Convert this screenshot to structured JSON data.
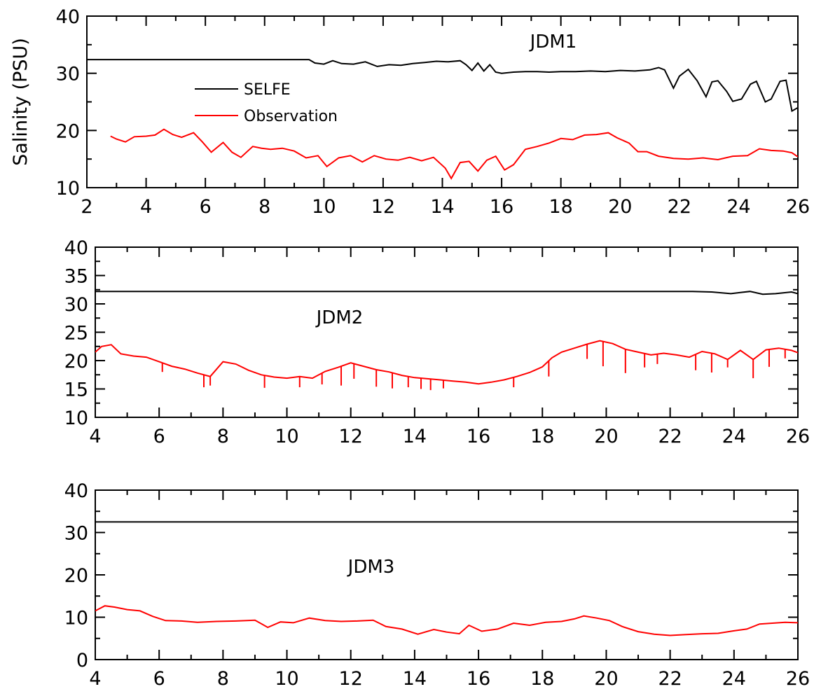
{
  "chart_data": [
    {
      "type": "line",
      "title": "JDM1",
      "ylabel": "Salinity (PSU)",
      "xlim": [
        2,
        26
      ],
      "ylim": [
        10,
        40
      ],
      "xticks": [
        2,
        4,
        6,
        8,
        10,
        12,
        14,
        16,
        18,
        20,
        22,
        24,
        26
      ],
      "yticks": [
        10,
        20,
        30,
        40
      ],
      "legend": {
        "position": "upper-left",
        "entries": [
          "SELFE",
          "Observation"
        ]
      },
      "series": [
        {
          "name": "SELFE",
          "color": "#000000",
          "x": [
            2,
            9.5,
            9.7,
            10,
            10.3,
            10.6,
            11,
            11.4,
            11.8,
            12.2,
            12.6,
            13,
            13.4,
            13.8,
            14.2,
            14.6,
            14.8,
            15,
            15.2,
            15.4,
            15.6,
            15.8,
            16,
            16.4,
            16.8,
            17.2,
            17.6,
            18,
            18.5,
            19,
            19.5,
            20,
            20.5,
            21,
            21.3,
            21.5,
            21.8,
            22,
            22.3,
            22.6,
            22.9,
            23.1,
            23.3,
            23.6,
            23.8,
            24.1,
            24.4,
            24.6,
            24.9,
            25.1,
            25.4,
            25.6,
            25.8,
            26
          ],
          "y": [
            32.4,
            32.4,
            31.8,
            31.6,
            32.2,
            31.7,
            31.6,
            32.0,
            31.2,
            31.5,
            31.4,
            31.7,
            31.9,
            32.1,
            32.0,
            32.2,
            31.5,
            30.5,
            31.8,
            30.4,
            31.5,
            30.2,
            30.0,
            30.2,
            30.3,
            30.3,
            30.2,
            30.3,
            30.3,
            30.4,
            30.3,
            30.5,
            30.4,
            30.6,
            31.0,
            30.6,
            27.4,
            29.5,
            30.7,
            28.7,
            25.9,
            28.5,
            28.7,
            26.8,
            25.1,
            25.5,
            28.1,
            28.6,
            25.0,
            25.5,
            28.6,
            28.8,
            23.4,
            24.0
          ]
        },
        {
          "name": "Observation",
          "color": "#ff0000",
          "x": [
            2.8,
            3.0,
            3.3,
            3.6,
            4.0,
            4.3,
            4.6,
            4.9,
            5.2,
            5.6,
            5.9,
            6.2,
            6.6,
            6.9,
            7.2,
            7.6,
            7.9,
            8.2,
            8.6,
            9.0,
            9.4,
            9.8,
            10.1,
            10.5,
            10.9,
            11.3,
            11.7,
            12.1,
            12.5,
            12.9,
            13.3,
            13.7,
            14.1,
            14.3,
            14.6,
            14.9,
            15.2,
            15.5,
            15.8,
            16.1,
            16.4,
            16.8,
            17.2,
            17.6,
            18.0,
            18.4,
            18.8,
            19.2,
            19.6,
            19.9,
            20.3,
            20.6,
            20.9,
            21.3,
            21.8,
            22.3,
            22.8,
            23.3,
            23.8,
            24.3,
            24.7,
            25.1,
            25.5,
            25.8,
            26.0
          ],
          "y": [
            19.0,
            18.5,
            18.0,
            18.9,
            19.0,
            19.2,
            20.2,
            19.3,
            18.8,
            19.6,
            18.0,
            16.2,
            17.9,
            16.2,
            15.3,
            17.2,
            16.9,
            16.7,
            16.9,
            16.4,
            15.2,
            15.6,
            13.7,
            15.2,
            15.6,
            14.5,
            15.6,
            15.0,
            14.8,
            15.3,
            14.7,
            15.3,
            13.4,
            11.6,
            14.4,
            14.6,
            12.9,
            14.8,
            15.5,
            13.1,
            14.0,
            16.7,
            17.2,
            17.8,
            18.6,
            18.4,
            19.2,
            19.3,
            19.6,
            18.7,
            17.8,
            16.3,
            16.3,
            15.5,
            15.1,
            15.0,
            15.2,
            14.9,
            15.5,
            15.6,
            16.8,
            16.5,
            16.4,
            16.1,
            15.4
          ]
        }
      ]
    },
    {
      "type": "line",
      "title": "JDM2",
      "xlim": [
        4,
        26
      ],
      "ylim": [
        10,
        40
      ],
      "xticks": [
        4,
        6,
        8,
        10,
        12,
        14,
        16,
        18,
        20,
        22,
        24,
        26
      ],
      "yticks": [
        10,
        15,
        20,
        25,
        30,
        35,
        40
      ],
      "series": [
        {
          "name": "SELFE",
          "color": "#000000",
          "x": [
            4,
            22.7,
            23.3,
            23.9,
            24.2,
            24.5,
            24.9,
            25.3,
            25.8,
            26
          ],
          "y": [
            32.2,
            32.2,
            32.1,
            31.8,
            32.0,
            32.2,
            31.7,
            31.8,
            32.1,
            31.8
          ]
        },
        {
          "name": "Observation",
          "color": "#ff0000",
          "x": [
            4,
            4.2,
            4.5,
            4.8,
            5.2,
            5.6,
            6.0,
            6.4,
            6.8,
            7.2,
            7.6,
            8.0,
            8.4,
            8.8,
            9.2,
            9.6,
            10.0,
            10.4,
            10.8,
            11.2,
            11.6,
            12.0,
            12.4,
            12.8,
            13.2,
            13.6,
            14.0,
            14.4,
            14.8,
            15.2,
            15.6,
            16.0,
            16.4,
            16.8,
            17.2,
            17.6,
            18.0,
            18.3,
            18.6,
            19.0,
            19.4,
            19.8,
            20.2,
            20.6,
            21.0,
            21.4,
            21.8,
            22.2,
            22.6,
            23.0,
            23.4,
            23.8,
            24.2,
            24.6,
            25.0,
            25.4,
            25.8,
            26.0
          ],
          "y": [
            21.5,
            22.5,
            22.8,
            21.2,
            20.8,
            20.6,
            19.8,
            19.0,
            18.5,
            17.8,
            17.2,
            19.8,
            19.4,
            18.3,
            17.5,
            17.1,
            16.9,
            17.2,
            16.9,
            18.1,
            18.8,
            19.6,
            19.0,
            18.4,
            18.0,
            17.4,
            17.0,
            16.8,
            16.6,
            16.4,
            16.2,
            15.9,
            16.2,
            16.6,
            17.2,
            17.9,
            18.9,
            20.5,
            21.5,
            22.2,
            22.9,
            23.5,
            23.0,
            22.0,
            21.5,
            21.0,
            21.3,
            21.0,
            20.6,
            21.6,
            21.2,
            20.2,
            21.8,
            20.2,
            21.9,
            22.2,
            21.8,
            21.4
          ],
          "dips": [
            [
              6.1,
              18.0
            ],
            [
              7.4,
              15.3
            ],
            [
              7.6,
              15.6
            ],
            [
              9.3,
              15.2
            ],
            [
              10.4,
              15.3
            ],
            [
              11.1,
              15.8
            ],
            [
              11.7,
              15.6
            ],
            [
              12.1,
              16.8
            ],
            [
              12.8,
              15.4
            ],
            [
              13.3,
              15.1
            ],
            [
              13.8,
              15.3
            ],
            [
              14.2,
              15.0
            ],
            [
              14.5,
              14.8
            ],
            [
              14.9,
              15.1
            ],
            [
              17.1,
              15.3
            ],
            [
              18.2,
              17.2
            ],
            [
              19.4,
              20.3
            ],
            [
              19.9,
              19.0
            ],
            [
              20.6,
              17.8
            ],
            [
              21.2,
              18.8
            ],
            [
              21.6,
              19.4
            ],
            [
              22.8,
              18.3
            ],
            [
              23.3,
              17.9
            ],
            [
              23.8,
              18.8
            ],
            [
              24.6,
              16.9
            ],
            [
              25.1,
              18.9
            ],
            [
              25.6,
              20.4
            ]
          ]
        }
      ]
    },
    {
      "type": "line",
      "title": "JDM3",
      "xlim": [
        4,
        26
      ],
      "ylim": [
        0,
        40
      ],
      "xticks": [
        4,
        6,
        8,
        10,
        12,
        14,
        16,
        18,
        20,
        22,
        24,
        26
      ],
      "yticks": [
        0,
        10,
        20,
        30,
        40
      ],
      "series": [
        {
          "name": "SELFE",
          "color": "#000000",
          "x": [
            4,
            26
          ],
          "y": [
            32.5,
            32.5
          ]
        },
        {
          "name": "Observation",
          "color": "#ff0000",
          "x": [
            4,
            4.3,
            4.6,
            5.0,
            5.4,
            5.8,
            6.2,
            6.7,
            7.2,
            7.8,
            8.4,
            9.0,
            9.4,
            9.8,
            10.2,
            10.7,
            11.2,
            11.7,
            12.2,
            12.7,
            13.1,
            13.6,
            14.1,
            14.6,
            15.0,
            15.4,
            15.7,
            16.1,
            16.6,
            17.1,
            17.6,
            18.1,
            18.6,
            19.0,
            19.3,
            19.7,
            20.1,
            20.5,
            21.0,
            21.5,
            22.0,
            22.5,
            23.0,
            23.5,
            24.0,
            24.4,
            24.8,
            25.2,
            25.6,
            26.0
          ],
          "y": [
            11.5,
            12.7,
            12.4,
            11.8,
            11.5,
            10.2,
            9.2,
            9.1,
            8.8,
            9.0,
            9.1,
            9.3,
            7.6,
            8.9,
            8.7,
            9.8,
            9.2,
            9.0,
            9.1,
            9.3,
            7.8,
            7.2,
            6.0,
            7.1,
            6.5,
            6.1,
            8.1,
            6.7,
            7.2,
            8.6,
            8.1,
            8.8,
            9.0,
            9.6,
            10.3,
            9.8,
            9.2,
            7.8,
            6.6,
            6.0,
            5.7,
            5.9,
            6.1,
            6.2,
            6.8,
            7.2,
            8.4,
            8.6,
            8.8,
            8.7
          ]
        }
      ]
    }
  ]
}
